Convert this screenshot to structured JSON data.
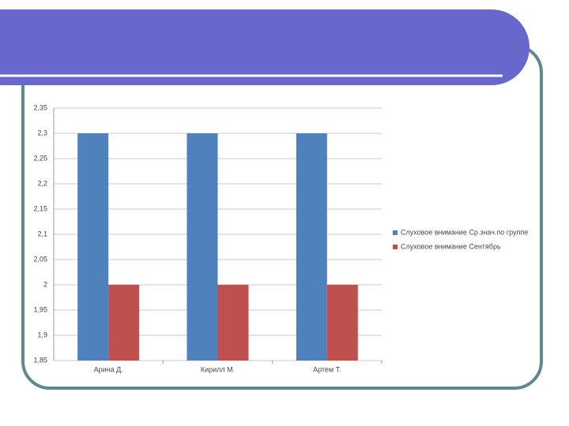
{
  "chart_data": {
    "type": "bar",
    "categories": [
      "Арина Д.",
      "Кирилл М.",
      "Артем Т."
    ],
    "series": [
      {
        "name": "Слуховое внимание Ср.знач.по группе",
        "color": "#4f81bd",
        "values": [
          2.3,
          2.3,
          2.3
        ]
      },
      {
        "name": "Слуховое внимание Сентябрь",
        "color": "#c0504d",
        "values": [
          2,
          2,
          2
        ]
      }
    ],
    "ylim": [
      1.85,
      2.35
    ],
    "yticks": [
      {
        "value": 1.85,
        "label": "1,85"
      },
      {
        "value": 1.9,
        "label": "1,9"
      },
      {
        "value": 1.95,
        "label": "1,95"
      },
      2,
      {
        "value": 2.05,
        "label": "2,05"
      },
      {
        "value": 2.1,
        "label": "2,1"
      },
      {
        "value": 2.15,
        "label": "2,15"
      },
      {
        "value": 2.2,
        "label": "2,2"
      },
      {
        "value": 2.25,
        "label": "2,25"
      },
      {
        "value": 2.3,
        "label": "2,3"
      },
      {
        "value": 2.35,
        "label": "2,35"
      }
    ],
    "grid": true,
    "legend": "right"
  }
}
